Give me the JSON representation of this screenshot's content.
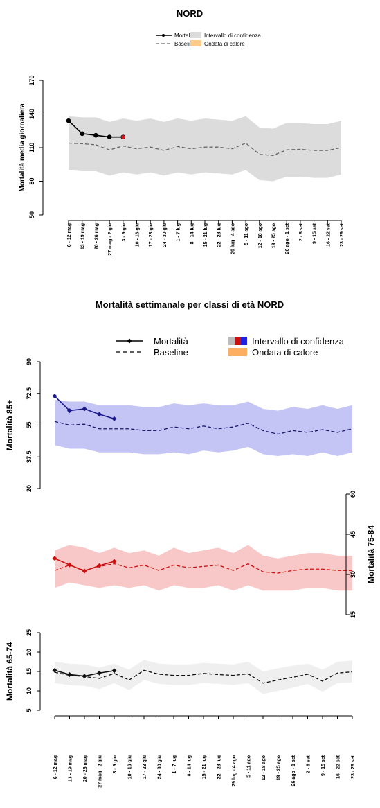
{
  "chart_data": [
    {
      "type": "line",
      "title": "NORD",
      "y_label": "Mortalità media giornaliera",
      "categories": [
        "6 - 12 mag",
        "13 - 19 mag",
        "20 - 26 mag",
        "27 mag - 2 giu",
        "3 - 9 giu",
        "10 - 16 giu",
        "17 - 23 giu",
        "24 - 30 giu",
        "1 - 7 lug",
        "8 - 14 lug",
        "15 - 21 lug",
        "22 - 28 lug",
        "29 lug - 4 ago",
        "5 - 11 ago",
        "12 - 18 ago",
        "19 - 25 ago",
        "26 ago - 1 set",
        "2 - 8 set",
        "9 - 15 set",
        "16 - 22 set",
        "23 - 29 set"
      ],
      "ylim": [
        50,
        170
      ],
      "yticks": [
        50,
        80,
        110,
        140,
        170
      ],
      "y_axis_side": "left",
      "series": [
        {
          "name": "Mortalità",
          "color": "#000000",
          "marker": "circle",
          "marker_colors": [
            "#000000",
            "#000000",
            "#000000",
            "#000000",
            "#e31a1c"
          ],
          "values": [
            134,
            122.5,
            121,
            119.5,
            119.5,
            null,
            null,
            null,
            null,
            null,
            null,
            null,
            null,
            null,
            null,
            null,
            null,
            null,
            null,
            null,
            null
          ]
        },
        {
          "name": "Baseline",
          "color": "#666666",
          "dashed": true,
          "values": [
            114,
            113.5,
            112.5,
            108,
            111.5,
            109,
            110.5,
            107.5,
            111,
            109,
            110.5,
            110.5,
            109,
            114,
            104,
            103,
            108,
            108.5,
            107.5,
            107.5,
            110
          ]
        },
        {
          "name": "Intervallo di confidenza",
          "color": "#dcdcdc",
          "upper": [
            138,
            137,
            137,
            133,
            136,
            134,
            136,
            133,
            136,
            134,
            136,
            135,
            134,
            138,
            128,
            127,
            132,
            132,
            131,
            131,
            134
          ],
          "lower": [
            90,
            89,
            89,
            85,
            88,
            86,
            88,
            85,
            88,
            86,
            88,
            87,
            86,
            90,
            81,
            80,
            84,
            84,
            83,
            83,
            86
          ]
        }
      ],
      "heatwave": {
        "name": "Ondata di calore",
        "color": "#fdcc8a"
      }
    },
    {
      "type": "line",
      "title": "Mortalità settimanale per classi di età NORD",
      "y_label": "Mortalità 85+",
      "ylim": [
        20,
        90
      ],
      "yticks": [
        20,
        37.5,
        55,
        72.5,
        90
      ],
      "y_axis_side": "left",
      "series": [
        {
          "name": "Mortalità",
          "color": "#1a1a8c",
          "marker": "diamond",
          "values": [
            71,
            63,
            64,
            61,
            58.5,
            null,
            null,
            null,
            null,
            null,
            null,
            null,
            null,
            null,
            null,
            null,
            null,
            null,
            null,
            null,
            null
          ]
        },
        {
          "name": "Baseline",
          "color": "#1a1a6e",
          "dashed": true,
          "values": [
            57,
            55,
            55.5,
            53,
            53,
            53,
            52,
            52,
            54,
            53,
            54.5,
            53,
            54,
            56,
            52,
            50,
            52,
            51,
            52.5,
            51,
            53
          ]
        },
        {
          "name": "Intervallo di confidenza",
          "color": "#c5c5f5",
          "upper": [
            69,
            68,
            68,
            66,
            66,
            66,
            65,
            65,
            67,
            66,
            67,
            66,
            66,
            68,
            64,
            63,
            65,
            64,
            66,
            64,
            66
          ],
          "lower": [
            44,
            42,
            42,
            40,
            40,
            40,
            39,
            39,
            40,
            39,
            41,
            40,
            41,
            43,
            39,
            38,
            39,
            38,
            40,
            38,
            40
          ]
        }
      ],
      "heatwave": {
        "name": "Ondata di calore",
        "color": "#fdae61"
      }
    },
    {
      "type": "line",
      "y_label": "Mortalità 75-84",
      "ylim": [
        15,
        60
      ],
      "yticks": [
        15,
        30,
        45,
        60
      ],
      "y_axis_side": "right",
      "series": [
        {
          "name": "Mortalità",
          "color": "#cc1010",
          "marker": "diamond",
          "values": [
            36,
            33.6,
            31.3,
            33.3,
            34.9,
            null,
            null,
            null,
            null,
            null,
            null,
            null,
            null,
            null,
            null,
            null,
            null,
            null,
            null,
            null,
            null
          ]
        },
        {
          "name": "Baseline",
          "color": "#cc1010",
          "dashed": true,
          "values": [
            31.5,
            33.5,
            31.5,
            33,
            34,
            32.5,
            33.5,
            31.5,
            33.5,
            32.5,
            33,
            33.5,
            31.5,
            34,
            31,
            30.5,
            31.5,
            32,
            32,
            31.5,
            31.5
          ]
        },
        {
          "name": "Intervallo di confidenza",
          "color": "#f8c8c8",
          "upper": [
            39,
            41,
            40,
            38,
            40,
            38,
            39,
            37,
            40,
            38,
            39,
            40,
            38,
            41,
            37,
            36,
            37,
            38,
            38,
            37,
            37
          ],
          "lower": [
            25,
            27,
            26,
            25,
            26,
            25,
            26,
            24,
            26,
            25,
            25,
            26,
            24,
            26,
            24,
            24,
            24,
            25,
            25,
            24,
            24
          ]
        }
      ]
    },
    {
      "type": "line",
      "y_label": "Mortalità 65-74",
      "categories": [
        "6 - 12 mag",
        "13 - 19 mag",
        "20 - 26 mag",
        "27 mag - 2 giu",
        "3 - 9 giu",
        "10 - 16 giu",
        "17 - 23 giu",
        "24 - 30 giu",
        "1 - 7 lug",
        "8 - 14 lug",
        "15 - 21 lug",
        "22 - 28 lug",
        "29 lug - 4 ago",
        "5 - 11 ago",
        "12 - 18 ago",
        "19 - 25 ago",
        "26 ago - 1 set",
        "2 - 8 set",
        "9 - 15 set",
        "16 - 22 set",
        "23 - 29 set"
      ],
      "ylim": [
        5,
        25
      ],
      "yticks": [
        5,
        10,
        15,
        20,
        25
      ],
      "y_axis_side": "left",
      "series": [
        {
          "name": "Mortalità",
          "color": "#111111",
          "marker": "diamond",
          "values": [
            15.3,
            14.2,
            13.8,
            14.6,
            15.2,
            null,
            null,
            null,
            null,
            null,
            null,
            null,
            null,
            null,
            null,
            null,
            null,
            null,
            null,
            null,
            null
          ]
        },
        {
          "name": "Baseline",
          "color": "#111111",
          "dashed": true,
          "values": [
            14.8,
            14,
            13.7,
            13.2,
            14.5,
            12.8,
            15.3,
            14.3,
            14,
            14,
            14.5,
            14.2,
            14,
            14.4,
            12,
            12.8,
            13.5,
            14.3,
            12.5,
            14.6,
            14.9
          ]
        },
        {
          "name": "Intervallo di confidenza",
          "color": "#efefef",
          "upper": [
            17.5,
            17,
            16.8,
            16,
            17,
            15.5,
            18,
            17,
            16.8,
            16.8,
            17.2,
            17,
            16.8,
            17.5,
            15,
            15.8,
            16.5,
            17,
            15.5,
            17.5,
            17.8
          ],
          "lower": [
            12,
            11.5,
            11.3,
            10.5,
            12,
            10.2,
            12.8,
            11.8,
            11.5,
            11.5,
            12,
            11.8,
            11.5,
            12,
            9.2,
            10,
            10.8,
            11.8,
            9.8,
            12,
            12.2
          ]
        }
      ]
    }
  ]
}
